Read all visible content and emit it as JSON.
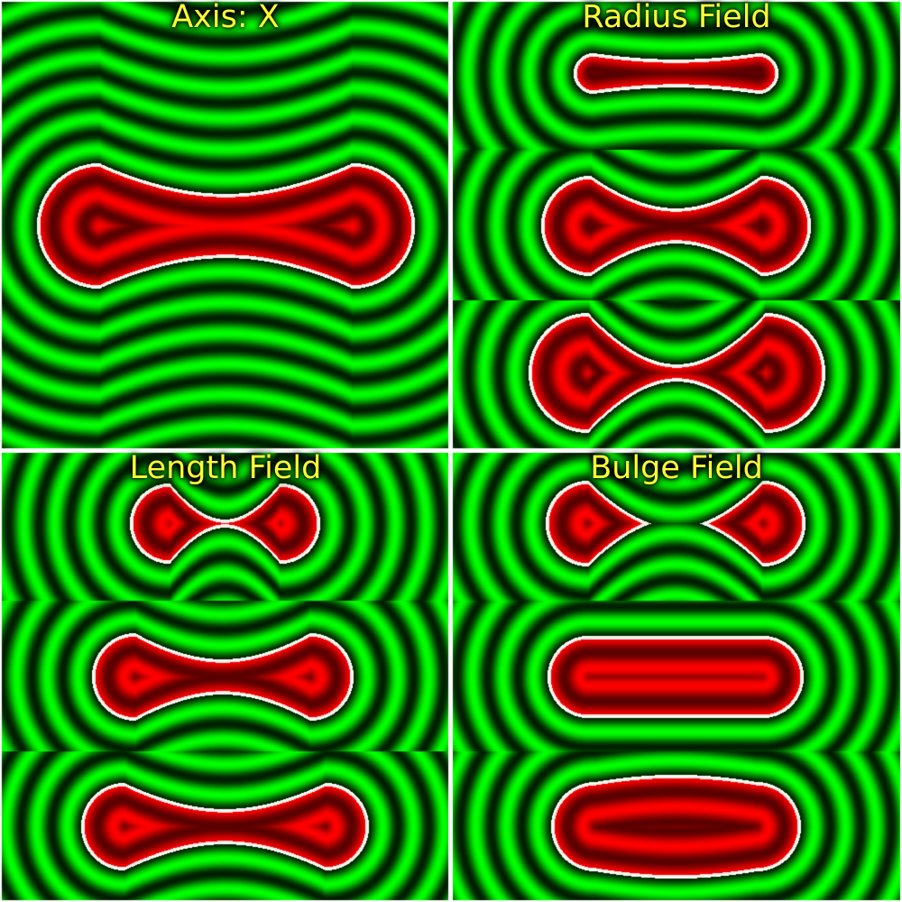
{
  "panels": {
    "axis": {
      "title": "Axis: X"
    },
    "radius": {
      "title": "Radius Field"
    },
    "length": {
      "title": "Length Field"
    },
    "bulge": {
      "title": "Bulge Field"
    }
  },
  "colors": {
    "inside": "#ff0000",
    "outside": "#00ff00",
    "boundary": "#ffffff",
    "title": "#ffff33",
    "divider": "#ffffff"
  }
}
